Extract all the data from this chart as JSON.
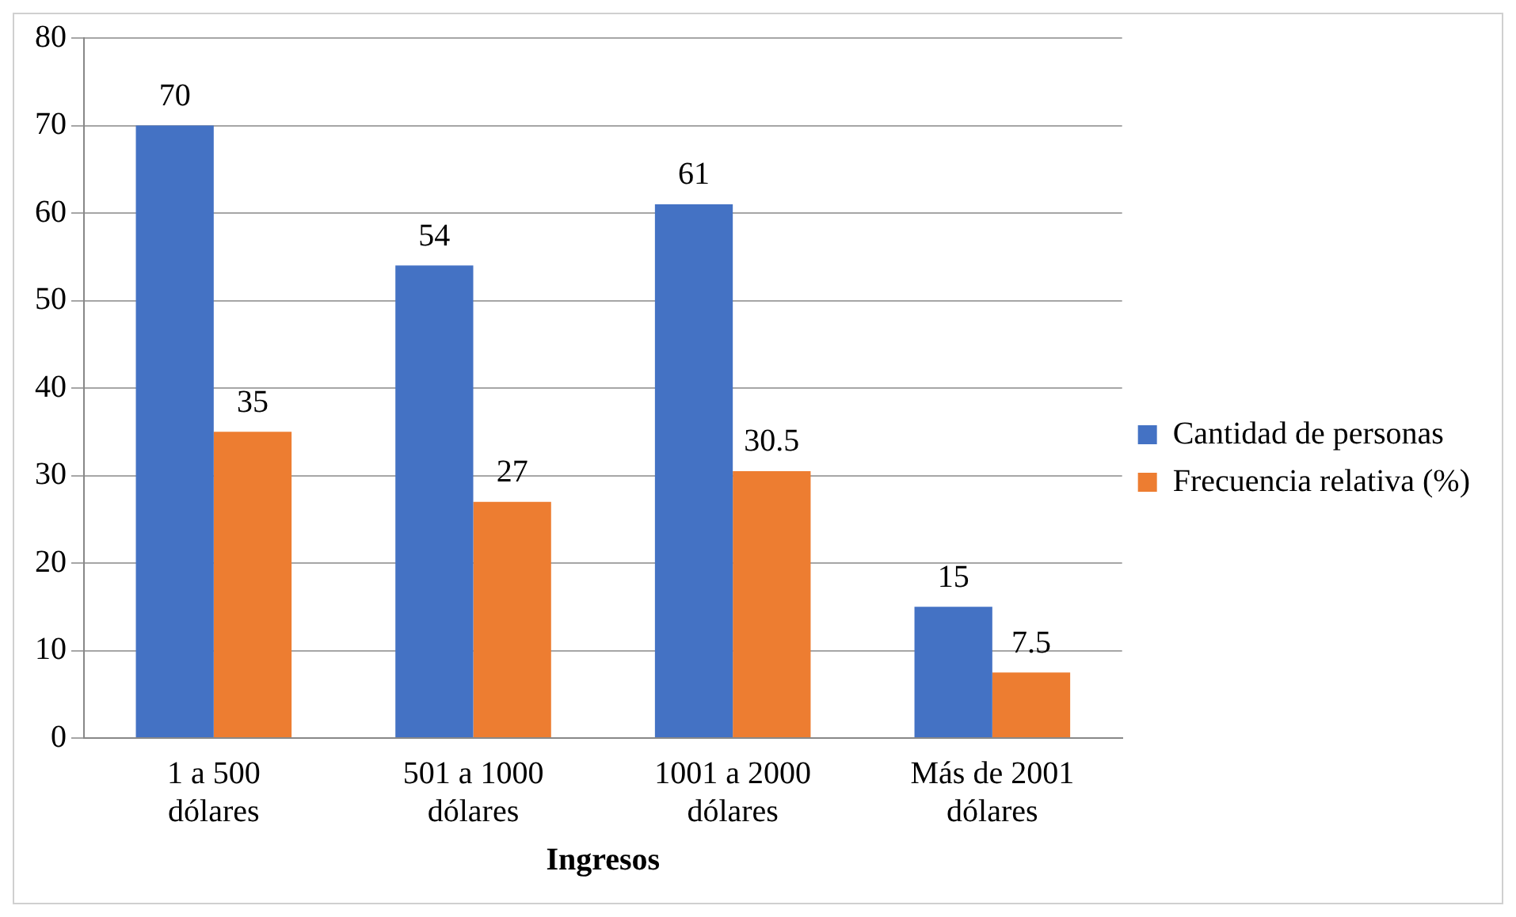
{
  "chart_data": {
    "type": "bar",
    "xlabel": "Ingresos",
    "categories": [
      "1 a 500 dólares",
      "501 a 1000 dólares",
      "1001 a 2000 dólares",
      "Más de 2001 dólares"
    ],
    "series": [
      {
        "name": "Cantidad de personas",
        "color": "#4472c4",
        "values": [
          70,
          54,
          61,
          15
        ]
      },
      {
        "name": "Frecuencia relativa (%)",
        "color": "#ed7d31",
        "values": [
          35,
          27,
          30.5,
          7.5
        ]
      }
    ],
    "ylim": [
      0,
      80
    ],
    "yticks": [
      0,
      10,
      20,
      30,
      40,
      50,
      60,
      70,
      80
    ],
    "grid": "y",
    "legend": "right",
    "data_labels": true
  }
}
